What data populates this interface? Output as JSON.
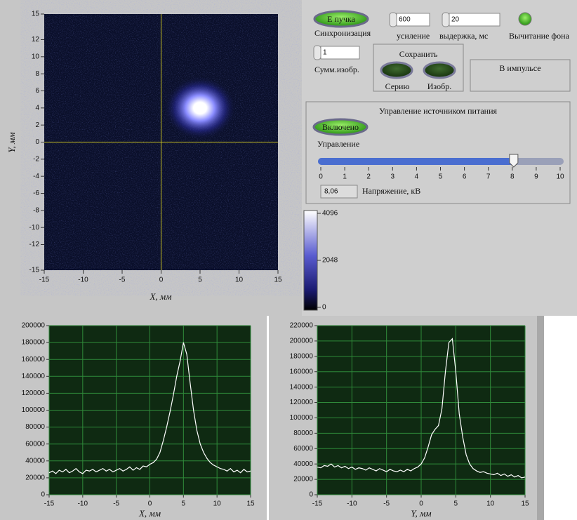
{
  "controls": {
    "beam_button": "E пучка",
    "sync_label": "Синхронизация",
    "gain": {
      "value": 600,
      "label": "усиление"
    },
    "exposure": {
      "value": 20,
      "label": "выдержка, мс"
    },
    "background_label": "Вычитание фона",
    "sum": {
      "value": 1,
      "label": "Сумм.изобр."
    },
    "save": {
      "title": "Сохранить",
      "series": "Серию",
      "image": "Изобр."
    },
    "pulse_label": "В импульсе",
    "power": {
      "title": "Управление источником питания",
      "button": "Включено",
      "control_label": "Управление",
      "slider": {
        "min": 0,
        "max": 10,
        "ticks": [
          0,
          1,
          2,
          3,
          4,
          5,
          6,
          7,
          8,
          9,
          10
        ],
        "value": 8.06,
        "value_label": "8,06",
        "label": "Напряжение, кВ"
      }
    }
  },
  "chart_data": [
    {
      "type": "image",
      "x_label": "X, мм",
      "y_label": "Y, мм",
      "xlim": [
        -15,
        15
      ],
      "xticks": [
        -15,
        -10,
        -5,
        0,
        5,
        10,
        15
      ],
      "ylim": [
        -15,
        15
      ],
      "yticks": [
        15,
        12,
        10,
        8,
        6,
        4,
        2,
        0,
        -2,
        -4,
        -6,
        -8,
        -10,
        -12,
        -15
      ],
      "colorbar": {
        "ylim": [
          0,
          4096
        ],
        "yticks": [
          4096,
          2048,
          0
        ]
      }
    },
    {
      "type": "line",
      "x_label": "X, мм",
      "color": "#ffffff",
      "x": [
        -15,
        -14.5,
        -14,
        -13.5,
        -13,
        -12.5,
        -12,
        -11.5,
        -11,
        -10.5,
        -10,
        -9.5,
        -9,
        -8.5,
        -8,
        -7.5,
        -7,
        -6.5,
        -6,
        -5.5,
        -5,
        -4.5,
        -4,
        -3.5,
        -3,
        -2.5,
        -2,
        -1.5,
        -1,
        -0.5,
        0,
        0.5,
        1,
        1.5,
        2,
        2.5,
        3,
        3.5,
        4,
        4.5,
        5,
        5.5,
        6,
        6.5,
        7,
        7.5,
        8,
        8.5,
        9,
        9.5,
        10,
        10.5,
        11,
        11.5,
        12,
        12.5,
        13,
        13.5,
        14,
        14.5,
        15
      ],
      "values": [
        26000,
        28000,
        25000,
        29000,
        27000,
        30000,
        26000,
        28000,
        31000,
        27000,
        25000,
        29000,
        28000,
        30000,
        27000,
        29000,
        31000,
        28000,
        30000,
        27000,
        29000,
        31000,
        28000,
        30000,
        33000,
        29000,
        32000,
        30000,
        34000,
        33000,
        36000,
        38000,
        42000,
        50000,
        64000,
        80000,
        98000,
        118000,
        140000,
        158000,
        180000,
        166000,
        132000,
        100000,
        76000,
        60000,
        50000,
        43000,
        38000,
        35000,
        33000,
        31000,
        30000,
        28000,
        31000,
        27000,
        29000,
        26000,
        30000,
        27000,
        28000
      ],
      "xlim": [
        -15,
        15
      ],
      "xticks": [
        -15,
        -10,
        -5,
        0,
        5,
        10,
        15
      ],
      "ylim": [
        0,
        200000
      ],
      "yticks": [
        0,
        20000,
        40000,
        60000,
        80000,
        100000,
        120000,
        140000,
        160000,
        180000,
        200000
      ],
      "grid": true
    },
    {
      "type": "line",
      "x_label": "Y, мм",
      "color": "#ffffff",
      "x": [
        -15,
        -14.5,
        -14,
        -13.5,
        -13,
        -12.5,
        -12,
        -11.5,
        -11,
        -10.5,
        -10,
        -9.5,
        -9,
        -8.5,
        -8,
        -7.5,
        -7,
        -6.5,
        -6,
        -5.5,
        -5,
        -4.5,
        -4,
        -3.5,
        -3,
        -2.5,
        -2,
        -1.5,
        -1,
        -0.5,
        0,
        0.5,
        1,
        1.5,
        2,
        2.5,
        3,
        3.5,
        4,
        4.5,
        5,
        5.5,
        6,
        6.5,
        7,
        7.5,
        8,
        8.5,
        9,
        9.5,
        10,
        10.5,
        11,
        11.5,
        12,
        12.5,
        13,
        13.5,
        14,
        14.5,
        15
      ],
      "values": [
        36000,
        35000,
        38000,
        37000,
        40000,
        36000,
        38000,
        35000,
        37000,
        34000,
        36000,
        33000,
        35000,
        34000,
        32000,
        35000,
        33000,
        31000,
        34000,
        32000,
        30000,
        33000,
        31000,
        30000,
        32000,
        30000,
        33000,
        31000,
        34000,
        36000,
        40000,
        48000,
        62000,
        78000,
        85000,
        90000,
        112000,
        160000,
        198000,
        203000,
        160000,
        105000,
        75000,
        52000,
        40000,
        34000,
        31000,
        29000,
        30000,
        28000,
        27000,
        26000,
        28000,
        25000,
        27000,
        24000,
        26000,
        23000,
        25000,
        22000,
        23000
      ],
      "xlim": [
        -15,
        15
      ],
      "xticks": [
        -15,
        -10,
        -5,
        0,
        5,
        10,
        15
      ],
      "ylim": [
        0,
        220000
      ],
      "yticks": [
        0,
        20000,
        40000,
        60000,
        80000,
        100000,
        120000,
        140000,
        160000,
        180000,
        200000,
        220000
      ],
      "grid": true
    }
  ]
}
